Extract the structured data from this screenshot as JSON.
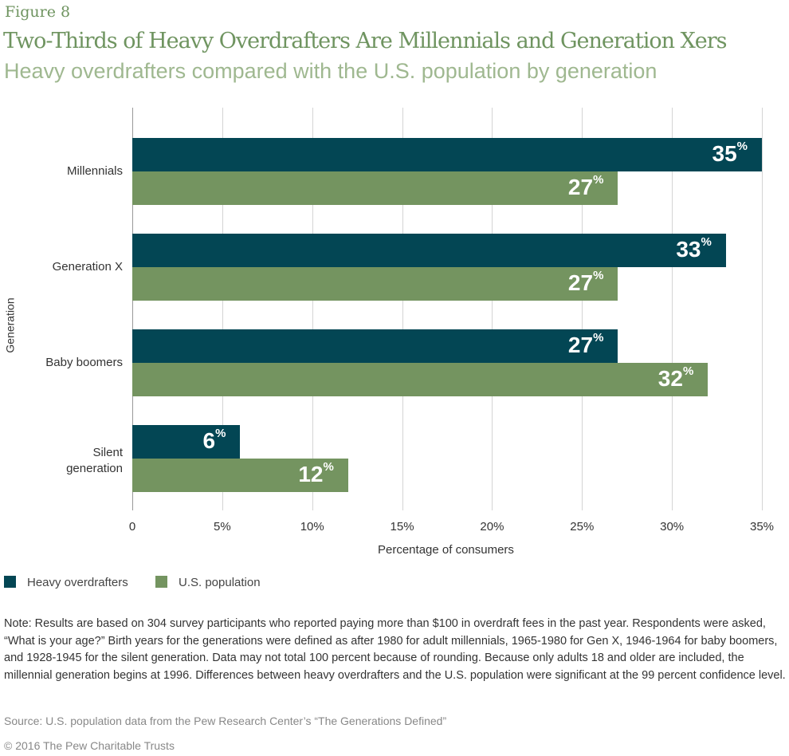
{
  "figure_label": "Figure 8",
  "chart_data": {
    "type": "bar",
    "orientation": "horizontal",
    "title": "Two-Thirds of Heavy Overdrafters Are Millennials and Generation Xers",
    "subtitle": "Heavy overdrafters compared with the U.S. population by generation",
    "xlabel": "Percentage of consumers",
    "ylabel": "Generation",
    "categories": [
      "Millennials",
      "Generation X",
      "Baby boomers",
      "Silent generation"
    ],
    "xlim": [
      0,
      35
    ],
    "xticks": [
      "0",
      "5%",
      "10%",
      "15%",
      "20%",
      "25%",
      "30%",
      "35%"
    ],
    "grid": true,
    "legend_position": "bottom-left",
    "series": [
      {
        "name": "Heavy overdrafters",
        "color": "#034654",
        "values": [
          35,
          33,
          27,
          6
        ]
      },
      {
        "name": "U.S. population",
        "color": "#749460",
        "values": [
          27,
          27,
          32,
          12
        ]
      }
    ]
  },
  "note": "Note: Results are based on 304 survey participants who reported paying more than $100 in overdraft fees in the past year. Respondents were asked, “What is your age?” Birth years for the generations were defined as after 1980 for adult millennials, 1965-1980 for Gen X, 1946-1964 for baby boomers, and 1928-1945 for the silent generation. Data may not total 100 percent because of rounding. Because only adults 18 and older are included, the millennial generation begins at 1996. Differences between heavy overdrafters and the U.S. population were significant at the 99 percent confidence level.",
  "source": "Source: U.S. population data from the Pew Research Center’s “The Generations Defined”",
  "copyright": "© 2016 The Pew Charitable Trusts"
}
